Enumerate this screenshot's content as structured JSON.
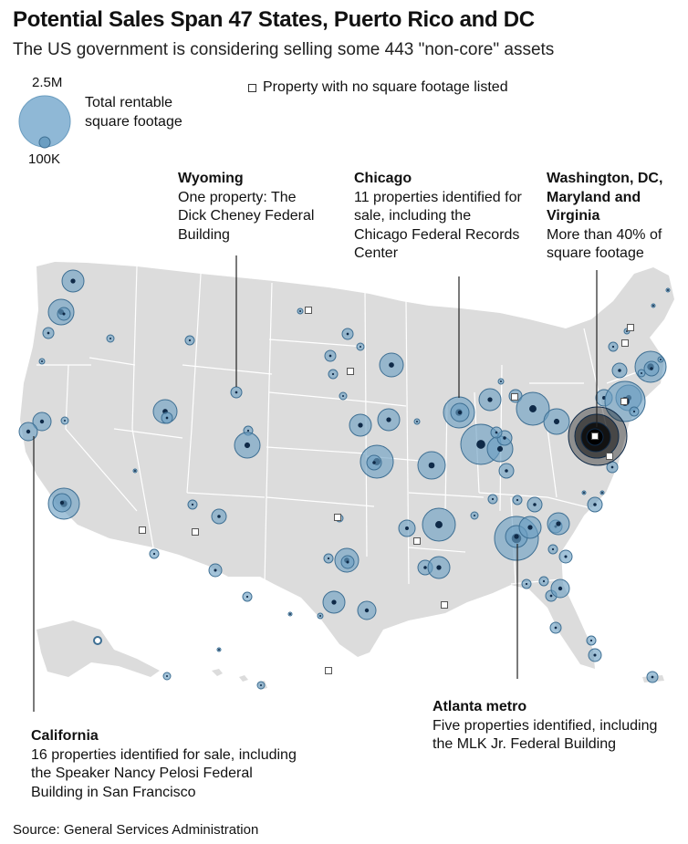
{
  "title": "Potential Sales Span 47 States, Puerto Rico and DC",
  "subtitle": "The US government is considering selling some 443 \"non-core\" assets",
  "legend": {
    "large_value": "2.5M",
    "small_value": "100K",
    "size_label": "Total rentable square footage",
    "square_label": "Property with no square footage listed"
  },
  "annotations": {
    "wyoming": {
      "head": "Wyoming",
      "body": "One property: The Dick Cheney Federal Building"
    },
    "chicago": {
      "head": "Chicago",
      "body": "11 properties identified for sale, including the Chicago Federal Records Center"
    },
    "dc": {
      "head": "Washington, DC, Maryland and Virginia",
      "body": "More than 40% of square footage"
    },
    "atlanta": {
      "head": "Atlanta metro",
      "body": "Five properties identified, including the MLK Jr. Federal Building"
    },
    "california": {
      "head": "California",
      "body": "16 properties identified for sale, including the Speaker Nancy Pelosi Federal Building in San Francisco"
    }
  },
  "source": "Source: General Services Administration",
  "colors": {
    "land": "#dcdcdc",
    "border": "#ffffff",
    "bubble": "#6b9ec2",
    "bubble_stroke": "#3e6f93",
    "dark": "#0f2a48",
    "dc_cluster": "#000000"
  }
}
